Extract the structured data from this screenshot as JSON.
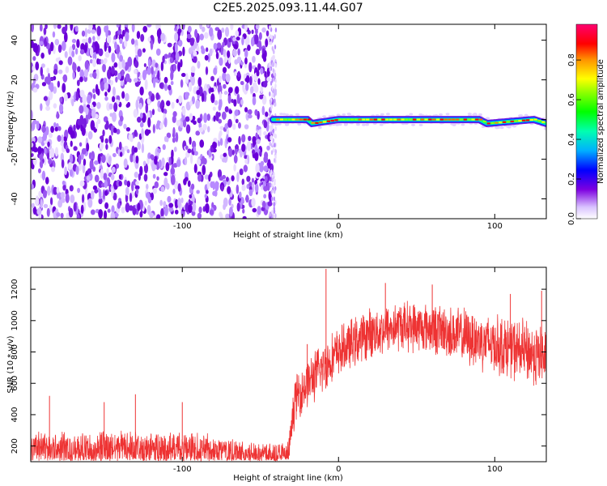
{
  "title": "C2E5.2025.093.11.44.G07",
  "chart_data": [
    {
      "type": "heatmap",
      "xlabel": "Height of straight line (km)",
      "ylabel": "Frequency (Hz)",
      "xlim": [
        -197,
        133
      ],
      "ylim": [
        -50,
        48
      ],
      "x_ticks": [
        -100,
        0,
        100
      ],
      "y_ticks": [
        -40,
        -20,
        0,
        20,
        40
      ],
      "noise_region_x": [
        -197,
        -42
      ],
      "signal_line": {
        "x_start": -42,
        "x_end": 133,
        "freq": [
          {
            "x": -42,
            "y": 0
          },
          {
            "x": -20,
            "y": 0
          },
          {
            "x": -17,
            "y": -2
          },
          {
            "x": 0,
            "y": 0
          },
          {
            "x": 90,
            "y": 0
          },
          {
            "x": 95,
            "y": -2
          },
          {
            "x": 125,
            "y": 0
          },
          {
            "x": 133,
            "y": -2
          }
        ]
      },
      "colorbar": {
        "label": "Normalized spectral amplitude",
        "ticks": [
          0.0,
          0.2,
          0.4,
          0.6,
          0.8
        ],
        "range": [
          0,
          0.98
        ]
      }
    },
    {
      "type": "line",
      "xlabel": "Height of straight line (km)",
      "ylabel": "SNR (10 * v/v)",
      "xlim": [
        -197,
        133
      ],
      "ylim": [
        100,
        1340
      ],
      "x_ticks": [
        -100,
        0,
        100
      ],
      "y_ticks": [
        200,
        400,
        600,
        800,
        1000,
        1200
      ],
      "color": "#ee3333",
      "envelope": [
        {
          "x": -197,
          "mean": 170,
          "spread": 110
        },
        {
          "x": -150,
          "mean": 180,
          "spread": 110
        },
        {
          "x": -100,
          "mean": 180,
          "spread": 110
        },
        {
          "x": -60,
          "mean": 150,
          "spread": 90
        },
        {
          "x": -32,
          "mean": 140,
          "spread": 80
        },
        {
          "x": -28,
          "mean": 500,
          "spread": 140
        },
        {
          "x": -20,
          "mean": 600,
          "spread": 150
        },
        {
          "x": -10,
          "mean": 700,
          "spread": 160
        },
        {
          "x": 0,
          "mean": 800,
          "spread": 150
        },
        {
          "x": 20,
          "mean": 920,
          "spread": 150
        },
        {
          "x": 40,
          "mean": 970,
          "spread": 150
        },
        {
          "x": 60,
          "mean": 950,
          "spread": 150
        },
        {
          "x": 80,
          "mean": 900,
          "spread": 170
        },
        {
          "x": 100,
          "mean": 850,
          "spread": 180
        },
        {
          "x": 120,
          "mean": 800,
          "spread": 190
        },
        {
          "x": 133,
          "mean": 760,
          "spread": 190
        }
      ],
      "spikes": [
        {
          "x": -185,
          "y": 520
        },
        {
          "x": -150,
          "y": 480
        },
        {
          "x": -130,
          "y": 530
        },
        {
          "x": -100,
          "y": 480
        },
        {
          "x": -8,
          "y": 1330
        },
        {
          "x": -20,
          "y": 850
        },
        {
          "x": 30,
          "y": 1240
        },
        {
          "x": 60,
          "y": 1230
        },
        {
          "x": 110,
          "y": 1170
        },
        {
          "x": 130,
          "y": 1190
        }
      ]
    }
  ]
}
